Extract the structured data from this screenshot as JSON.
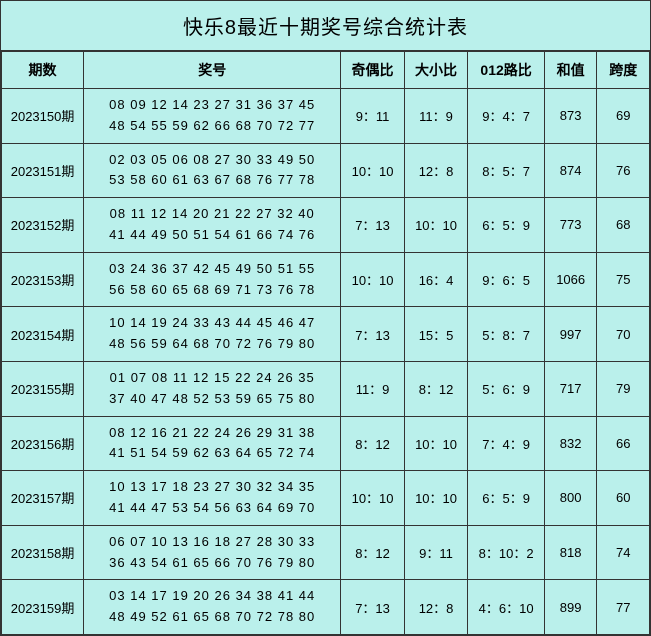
{
  "title": "快乐8最近十期奖号综合统计表",
  "headers": {
    "period": "期数",
    "numbers": "奖号",
    "odd_even": "奇偶比",
    "big_small": "大小比",
    "route012": "012路比",
    "sum": "和值",
    "span": "跨度"
  },
  "rows": [
    {
      "period": "2023150期",
      "numbers_line1": "08 09 12 14 23 27 31 36 37 45",
      "numbers_line2": "48 54 55 59 62 66 68 70 72 77",
      "odd_even": "9：11",
      "big_small": "11：9",
      "route012": "9：4：7",
      "sum": "873",
      "span": "69"
    },
    {
      "period": "2023151期",
      "numbers_line1": "02 03 05 06 08 27 30 33 49 50",
      "numbers_line2": "53 58 60 61 63 67 68 76 77 78",
      "odd_even": "10：10",
      "big_small": "12：8",
      "route012": "8：5：7",
      "sum": "874",
      "span": "76"
    },
    {
      "period": "2023152期",
      "numbers_line1": "08 11 12 14 20 21 22 27 32 40",
      "numbers_line2": "41 44 49 50 51 54 61 66 74 76",
      "odd_even": "7：13",
      "big_small": "10：10",
      "route012": "6：5：9",
      "sum": "773",
      "span": "68"
    },
    {
      "period": "2023153期",
      "numbers_line1": "03 24 36 37 42 45 49 50 51 55",
      "numbers_line2": "56 58 60 65 68 69 71 73 76 78",
      "odd_even": "10：10",
      "big_small": "16：4",
      "route012": "9：6：5",
      "sum": "1066",
      "span": "75"
    },
    {
      "period": "2023154期",
      "numbers_line1": "10 14 19 24 33 43 44 45 46 47",
      "numbers_line2": "48 56 59 64 68 70 72 76 79 80",
      "odd_even": "7：13",
      "big_small": "15：5",
      "route012": "5：8：7",
      "sum": "997",
      "span": "70"
    },
    {
      "period": "2023155期",
      "numbers_line1": "01 07 08 11 12 15 22 24 26 35",
      "numbers_line2": "37 40 47 48 52 53 59 65 75 80",
      "odd_even": "11：9",
      "big_small": "8：12",
      "route012": "5：6：9",
      "sum": "717",
      "span": "79"
    },
    {
      "period": "2023156期",
      "numbers_line1": "08 12 16 21 22 24 26 29 31 38",
      "numbers_line2": "41 51 54 59 62 63 64 65 72 74",
      "odd_even": "8：12",
      "big_small": "10：10",
      "route012": "7：4：9",
      "sum": "832",
      "span": "66"
    },
    {
      "period": "2023157期",
      "numbers_line1": "10 13 17 18 23 27 30 32 34 35",
      "numbers_line2": "41 44 47 53 54 56 63 64 69 70",
      "odd_even": "10：10",
      "big_small": "10：10",
      "route012": "6：5：9",
      "sum": "800",
      "span": "60"
    },
    {
      "period": "2023158期",
      "numbers_line1": "06 07 10 13 16 18 27 28 30 33",
      "numbers_line2": "36 43 54 61 65 66 70 76 79 80",
      "odd_even": "8：12",
      "big_small": "9：11",
      "route012": "8：10：2",
      "sum": "818",
      "span": "74"
    },
    {
      "period": "2023159期",
      "numbers_line1": "03 14 17 19 20 26 34 38 41 44",
      "numbers_line2": "48 49 52 61 65 68 70 72 78 80",
      "odd_even": "7：13",
      "big_small": "12：8",
      "route012": "4：6：10",
      "sum": "899",
      "span": "77"
    }
  ],
  "styling": {
    "background_color": "#baf0eb",
    "border_color": "#333333",
    "text_color": "#000000",
    "title_fontsize": 20,
    "header_fontsize": 14,
    "cell_fontsize": 13
  }
}
